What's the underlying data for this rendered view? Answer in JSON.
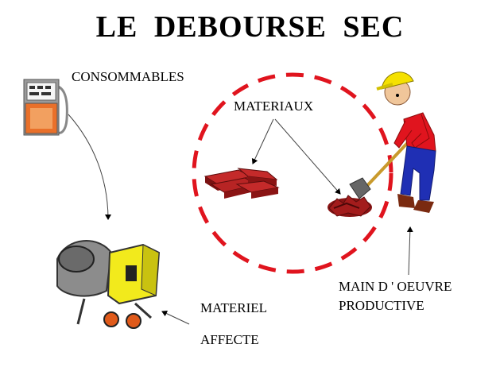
{
  "title": "LE  DEBOURSE  SEC",
  "labels": {
    "consommables": "CONSOMMABLES",
    "materiaux": "MATERIAUX",
    "main_oeuvre_line1": "MAIN D ' OEUVRE",
    "main_oeuvre_line2": "PRODUCTIVE",
    "materiel": "MATERIEL",
    "affecte": "AFFECTE"
  },
  "icons": [
    "fuel-pump-icon",
    "bricks-icon",
    "dug-hole-icon",
    "worker-with-shovel-icon",
    "concrete-mixer-icon"
  ],
  "colors": {
    "circle": "#e0141e",
    "brick": "#a31c1c",
    "shirt": "#e0141e",
    "helmet": "#f5e100",
    "jeans": "#1f2fb4",
    "mixer_body": "#f2ea1c",
    "wheels": "#e05a1a"
  }
}
